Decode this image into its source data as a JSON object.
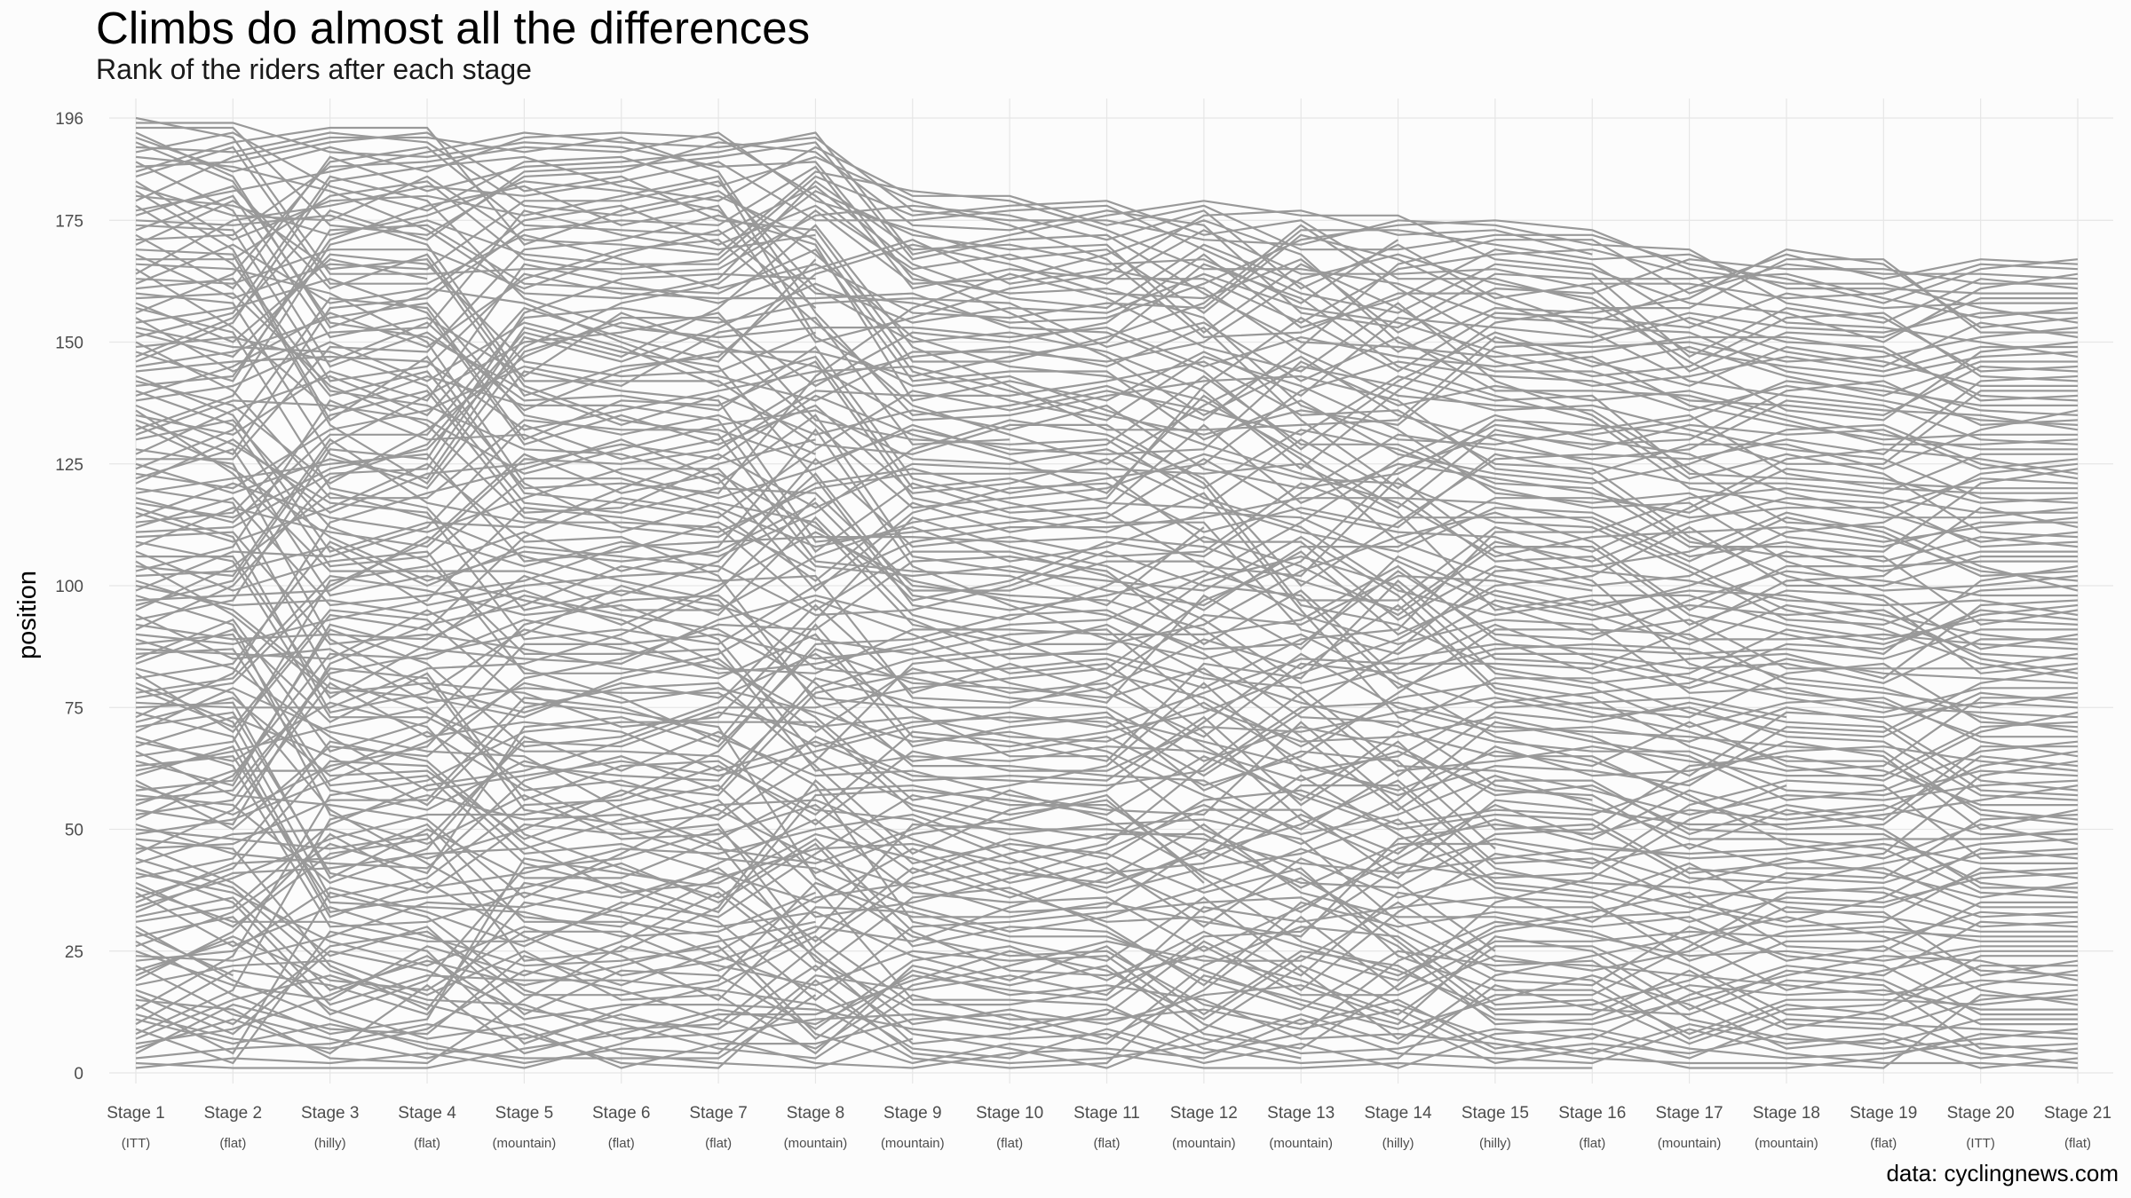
{
  "chart_data": {
    "type": "line",
    "title": "Climbs do almost all the differences",
    "subtitle": "Rank of the riders after each stage",
    "ylabel": "position",
    "xlabel": "",
    "caption": "data: cyclingnews.com",
    "ylim": [
      0,
      196
    ],
    "yticks": [
      0,
      25,
      50,
      75,
      100,
      125,
      150,
      175,
      196
    ],
    "grid": true,
    "legend": "none",
    "line_color": "#999999",
    "grid_color": "#e6e6e6",
    "stages": [
      {
        "label": "Stage 1",
        "type": "(ITT)",
        "riders": 196
      },
      {
        "label": "Stage 2",
        "type": "(flat)",
        "riders": 195
      },
      {
        "label": "Stage 3",
        "type": "(hilly)",
        "riders": 194
      },
      {
        "label": "Stage 4",
        "type": "(flat)",
        "riders": 194
      },
      {
        "label": "Stage 5",
        "type": "(mountain)",
        "riders": 193
      },
      {
        "label": "Stage 6",
        "type": "(flat)",
        "riders": 193
      },
      {
        "label": "Stage 7",
        "type": "(flat)",
        "riders": 193
      },
      {
        "label": "Stage 8",
        "type": "(mountain)",
        "riders": 193
      },
      {
        "label": "Stage 9",
        "type": "(mountain)",
        "riders": 181
      },
      {
        "label": "Stage 10",
        "type": "(flat)",
        "riders": 180
      },
      {
        "label": "Stage 11",
        "type": "(flat)",
        "riders": 179
      },
      {
        "label": "Stage 12",
        "type": "(mountain)",
        "riders": 179
      },
      {
        "label": "Stage 13",
        "type": "(mountain)",
        "riders": 177
      },
      {
        "label": "Stage 14",
        "type": "(hilly)",
        "riders": 176
      },
      {
        "label": "Stage 15",
        "type": "(hilly)",
        "riders": 175
      },
      {
        "label": "Stage 16",
        "type": "(flat)",
        "riders": 173
      },
      {
        "label": "Stage 17",
        "type": "(mountain)",
        "riders": 169
      },
      {
        "label": "Stage 18",
        "type": "(mountain)",
        "riders": 169
      },
      {
        "label": "Stage 19",
        "type": "(flat)",
        "riders": 167
      },
      {
        "label": "Stage 20",
        "type": "(ITT)",
        "riders": 167
      },
      {
        "label": "Stage 21",
        "type": "(flat)",
        "riders": 167
      }
    ]
  }
}
